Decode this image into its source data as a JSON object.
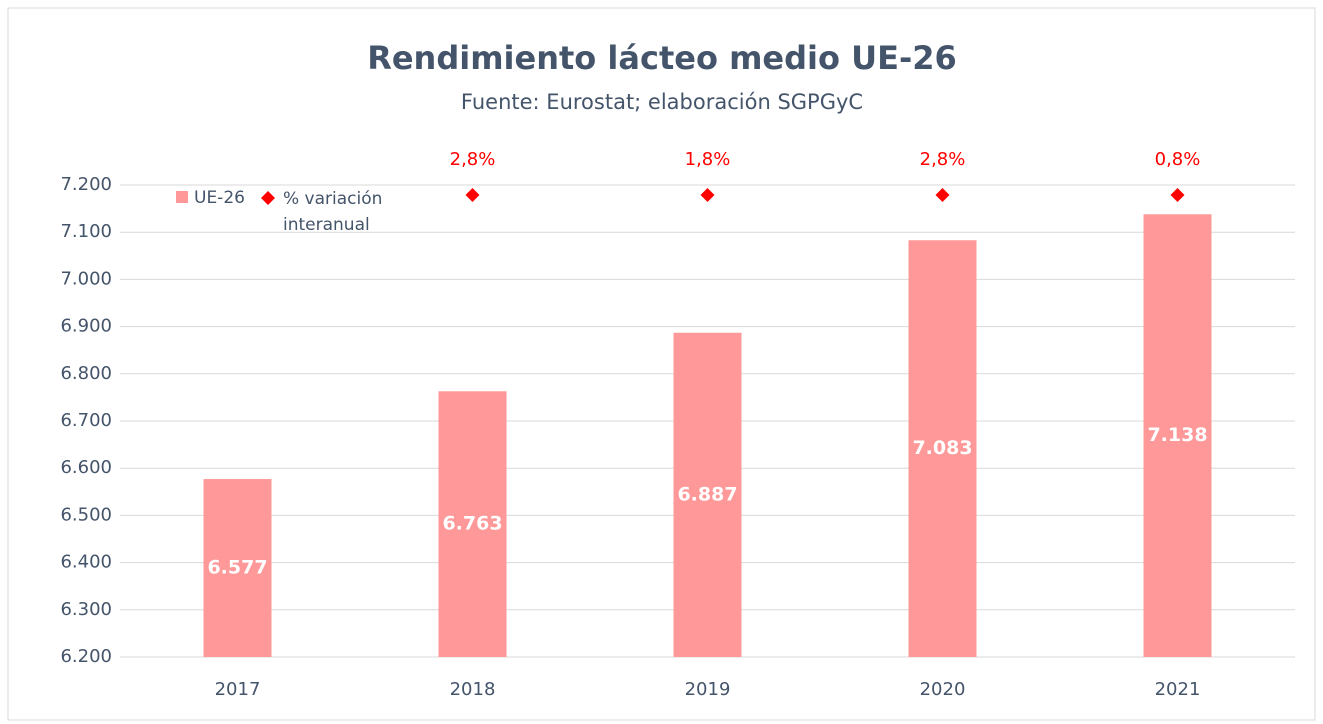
{
  "chart_data": {
    "type": "bar",
    "title": "Rendimiento lácteo medio UE-26",
    "subtitle": "Fuente: Eurostat; elaboración SGPGyC",
    "categories": [
      "2017",
      "2018",
      "2019",
      "2020",
      "2021"
    ],
    "series": [
      {
        "name": "UE-26",
        "color": "#ff9999",
        "values": [
          6577,
          6763,
          6887,
          7083,
          7138
        ],
        "value_labels": [
          "6.577",
          "6.763",
          "6.887",
          "7.083",
          "7.138"
        ]
      },
      {
        "name": "% variación interanual",
        "color": "#ff0000",
        "values": [
          null,
          2.8,
          1.8,
          2.8,
          0.8
        ],
        "value_labels": [
          null,
          "2,8%",
          "1,8%",
          "2,8%",
          "0,8%"
        ]
      }
    ],
    "ylim": [
      6200,
      7200
    ],
    "yticks": [
      {
        "value": 6200,
        "label": "6.200"
      },
      {
        "value": 6300,
        "label": "6.300"
      },
      {
        "value": 6400,
        "label": "6.400"
      },
      {
        "value": 6500,
        "label": "6.500"
      },
      {
        "value": 6600,
        "label": "6.600"
      },
      {
        "value": 6700,
        "label": "6.700"
      },
      {
        "value": 6800,
        "label": "6.800"
      },
      {
        "value": 6900,
        "label": "6.900"
      },
      {
        "value": 7000,
        "label": "7.000"
      },
      {
        "value": 7100,
        "label": "7.100"
      },
      {
        "value": 7200,
        "label": "7.200"
      }
    ],
    "grid": true
  }
}
